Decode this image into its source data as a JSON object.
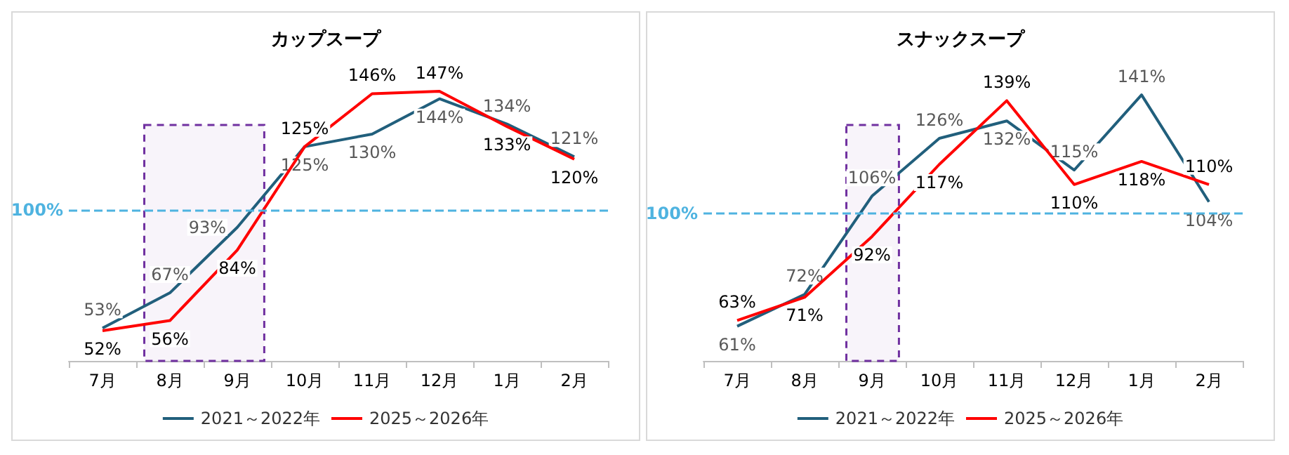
{
  "chart_data": [
    {
      "type": "line",
      "title": "カップスープ",
      "categories": [
        "7月",
        "8月",
        "9月",
        "10月",
        "11月",
        "12月",
        "1月",
        "2月"
      ],
      "legend": "bottom",
      "marker": "none",
      "line_style": "solid",
      "grid": false,
      "series": [
        {
          "name": "2021～2022年",
          "color": "#215f7c",
          "values": [
            53,
            67,
            93,
            125,
            130,
            144,
            134,
            121
          ],
          "value_labels": [
            "53%",
            "67%",
            "93%",
            "125%",
            "130%",
            "144%",
            "134%",
            "121%"
          ]
        },
        {
          "name": "2025～2026年",
          "color": "#ff0000",
          "values": [
            52,
            56,
            84,
            125,
            146,
            147,
            133,
            120
          ],
          "value_labels": [
            "52%",
            "56%",
            "84%",
            "125%",
            "146%",
            "147%",
            "133%",
            "120%"
          ]
        }
      ],
      "ref_lines": [
        {
          "axis": "y",
          "value": 100,
          "label": "100%",
          "color": "#4eb3e0",
          "line_style": "dashed"
        }
      ],
      "bands": [
        {
          "axis": "x",
          "from": "8月",
          "to": "9月",
          "color": "#7030a0"
        }
      ]
    },
    {
      "type": "line",
      "title": "スナックスープ",
      "categories": [
        "7月",
        "8月",
        "9月",
        "10月",
        "11月",
        "12月",
        "1月",
        "2月"
      ],
      "legend": "bottom",
      "marker": "none",
      "line_style": "solid",
      "grid": false,
      "series": [
        {
          "name": "2021～2022年",
          "color": "#215f7c",
          "values": [
            61,
            72,
            106,
            126,
            132,
            115,
            141,
            104
          ],
          "value_labels": [
            "61%",
            "72%",
            "106%",
            "126%",
            "132%",
            "115%",
            "141%",
            "104%"
          ]
        },
        {
          "name": "2025～2026年",
          "color": "#ff0000",
          "values": [
            63,
            71,
            92,
            117,
            139,
            110,
            118,
            110
          ],
          "value_labels": [
            "63%",
            "71%",
            "92%",
            "117%",
            "139%",
            "110%",
            "118%",
            "110%"
          ]
        }
      ],
      "ref_lines": [
        {
          "axis": "y",
          "value": 100,
          "label": "100%",
          "color": "#4eb3e0",
          "line_style": "dashed"
        }
      ],
      "bands": [
        {
          "axis": "x",
          "from": "9月",
          "to": "9月",
          "color": "#7030a0"
        }
      ]
    }
  ]
}
